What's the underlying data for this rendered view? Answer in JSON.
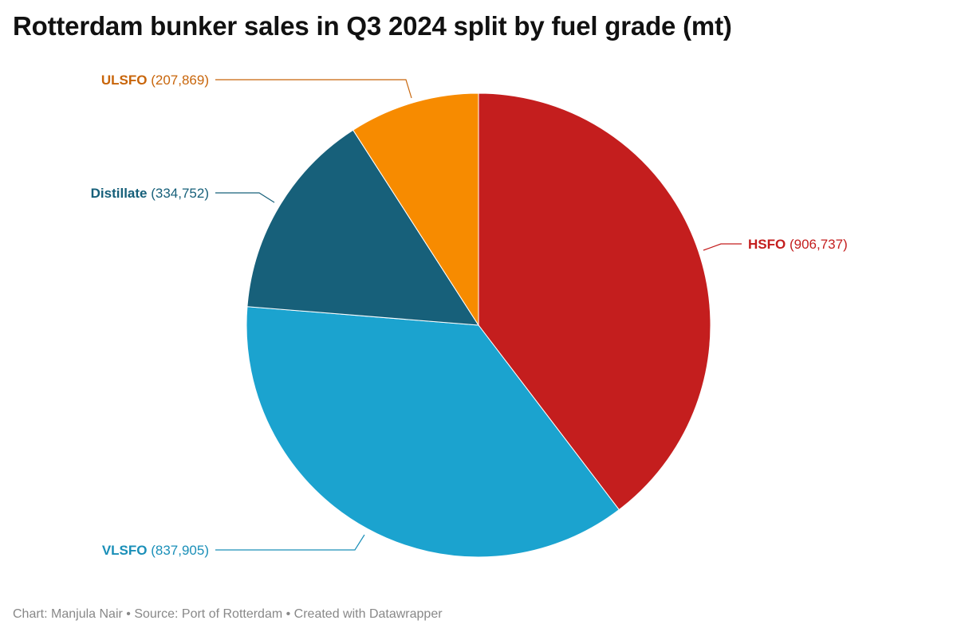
{
  "chart_data": {
    "type": "pie",
    "title": "Rotterdam bunker sales in Q3 2024 split by fuel grade (mt)",
    "slices": [
      {
        "name": "HSFO",
        "value": 906737,
        "display": "906,737",
        "color": "#c41e1e",
        "text_color": "#c41e1e"
      },
      {
        "name": "VLSFO",
        "value": 837905,
        "display": "837,905",
        "color": "#1ba3cf",
        "text_color": "#1a8fb8"
      },
      {
        "name": "Distillate",
        "value": 334752,
        "display": "334,752",
        "color": "#17607a",
        "text_color": "#17607a"
      },
      {
        "name": "ULSFO",
        "value": 207869,
        "display": "207,869",
        "color": "#f78b00",
        "text_color": "#c8650a"
      }
    ]
  },
  "footer": {
    "text": "Chart: Manjula Nair • Source: Port of Rotterdam • Created with Datawrapper"
  }
}
